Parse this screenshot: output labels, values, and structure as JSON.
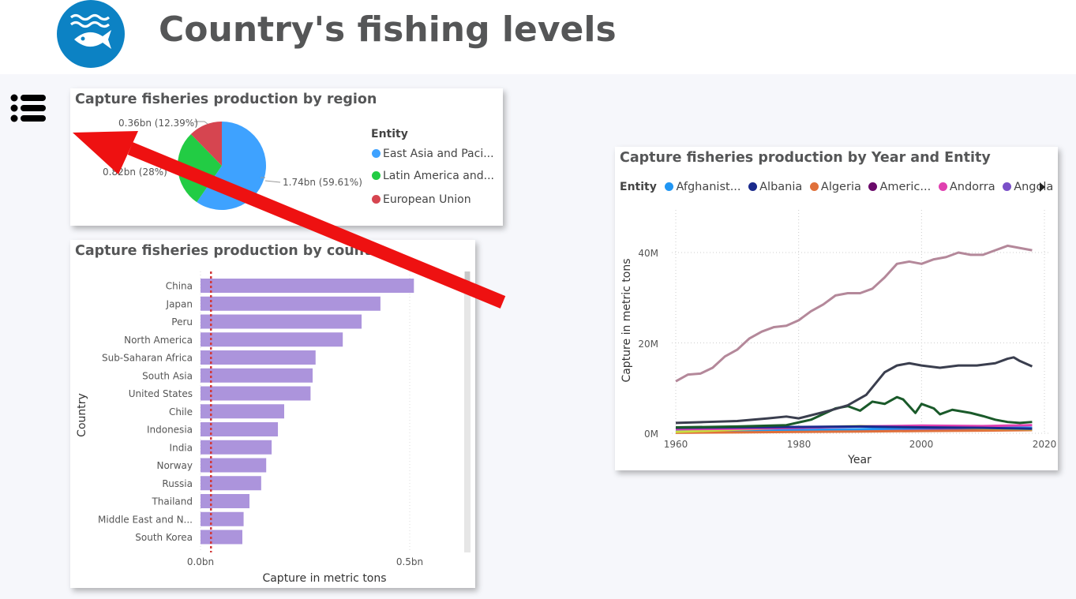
{
  "header": {
    "title": "Country's fishing levels",
    "logo_icon": "fish-waves-icon"
  },
  "menu": {
    "icon": "list-icon"
  },
  "pie_card": {
    "title": "Capture fisheries production by region",
    "legend_title": "Entity",
    "items": [
      {
        "label": "East Asia and Paci...",
        "color": "#3ea2ff"
      },
      {
        "label": "Latin America and...",
        "color": "#22cc44"
      },
      {
        "label": "European Union",
        "color": "#d64550"
      }
    ],
    "slice_labels": [
      "1.74bn (59.61%)",
      "0.82bn (28%)",
      "0.36bn (12.39%)"
    ]
  },
  "bar_card": {
    "title": "Capture fisheries production by country",
    "ylabel": "Country",
    "xlabel": "Capture in metric tons",
    "ticks": [
      "0.0bn",
      "0.5bn"
    ],
    "bar_color": "#ac94dc"
  },
  "line_card": {
    "title": "Capture fisheries production by Year and Entity",
    "legend_title": "Entity",
    "legend": [
      {
        "label": "Afghanist...",
        "color": "#2196f3"
      },
      {
        "label": "Albania",
        "color": "#1a2a8c"
      },
      {
        "label": "Algeria",
        "color": "#e0703a"
      },
      {
        "label": "Americ...",
        "color": "#6a0a6a"
      },
      {
        "label": "Andorra",
        "color": "#e040b0"
      },
      {
        "label": "Angola",
        "color": "#7a4fc8"
      }
    ],
    "ylabel": "Capture in metric tons",
    "xlabel": "Year",
    "yticks": [
      "0M",
      "20M",
      "40M"
    ],
    "xticks": [
      "1960",
      "1980",
      "2000",
      "2020"
    ]
  },
  "chart_data": [
    {
      "type": "pie",
      "title": "Capture fisheries production by region",
      "categories": [
        "East Asia and Paci...",
        "Latin America and...",
        "European Union"
      ],
      "values": [
        1.74,
        0.82,
        0.36
      ],
      "percent": [
        59.61,
        28,
        12.39
      ],
      "unit": "bn",
      "legend": "right"
    },
    {
      "type": "bar",
      "orientation": "horizontal",
      "title": "Capture fisheries production by country",
      "xlabel": "Capture in metric tons",
      "ylabel": "Country",
      "categories": [
        "China",
        "Japan",
        "Peru",
        "North America",
        "Sub-Saharan Africa",
        "South Asia",
        "United States",
        "Chile",
        "Indonesia",
        "India",
        "Norway",
        "Russia",
        "Thailand",
        "Middle East and N...",
        "South Korea"
      ],
      "values": [
        0.51,
        0.43,
        0.385,
        0.34,
        0.275,
        0.268,
        0.263,
        0.2,
        0.185,
        0.17,
        0.157,
        0.145,
        0.117,
        0.103,
        0.1
      ],
      "unit": "bn",
      "xlim": [
        0,
        0.6
      ],
      "reference_line": 0.025
    },
    {
      "type": "line",
      "title": "Capture fisheries production by Year and Entity",
      "xlabel": "Year",
      "ylabel": "Capture in metric tons",
      "xlim": [
        1960,
        2020
      ],
      "ylim": [
        0,
        45000000
      ],
      "grid": true,
      "legend": "top",
      "series": [
        {
          "color": "#b4889a",
          "x": [
            1960,
            1962,
            1964,
            1966,
            1968,
            1970,
            1972,
            1974,
            1976,
            1978,
            1980,
            1982,
            1984,
            1986,
            1988,
            1990,
            1992,
            1994,
            1996,
            1998,
            2000,
            2002,
            2004,
            2006,
            2008,
            2010,
            2012,
            2014,
            2016,
            2018
          ],
          "y": [
            11500000,
            13000000,
            13200000,
            14500000,
            17000000,
            18500000,
            21000000,
            22500000,
            23500000,
            23800000,
            25000000,
            27000000,
            28500000,
            30500000,
            31000000,
            31000000,
            32000000,
            34500000,
            37500000,
            38000000,
            37500000,
            38500000,
            39000000,
            40000000,
            39500000,
            39500000,
            40500000,
            41500000,
            41000000,
            40500000
          ]
        },
        {
          "color": "#3a3e4e",
          "x": [
            1960,
            1965,
            1970,
            1975,
            1978,
            1980,
            1985,
            1988,
            1991,
            1994,
            1996,
            1998,
            2000,
            2003,
            2006,
            2009,
            2012,
            2014,
            2015,
            2016,
            2018
          ],
          "y": [
            2300000,
            2500000,
            2700000,
            3300000,
            3700000,
            3300000,
            5000000,
            6200000,
            8500000,
            13500000,
            15000000,
            15500000,
            15000000,
            14500000,
            15000000,
            15000000,
            15500000,
            16500000,
            16800000,
            16000000,
            14800000
          ]
        },
        {
          "color": "#1a5a2a",
          "x": [
            1960,
            1970,
            1978,
            1982,
            1986,
            1988,
            1990,
            1992,
            1994,
            1996,
            1997,
            1999,
            2000,
            2002,
            2003,
            2005,
            2008,
            2010,
            2012,
            2014,
            2016,
            2018
          ],
          "y": [
            1300000,
            1500000,
            1800000,
            3000000,
            5500000,
            6000000,
            5000000,
            7000000,
            6500000,
            8000000,
            7500000,
            4500000,
            6500000,
            5500000,
            4200000,
            5200000,
            4500000,
            3800000,
            3000000,
            2500000,
            2300000,
            2500000
          ]
        },
        {
          "color": "#1a2a8c",
          "x": [
            1960,
            1970,
            1980,
            1990,
            2000,
            2010,
            2018
          ],
          "y": [
            1200000,
            1300000,
            1400000,
            1500000,
            1300000,
            1200000,
            1000000
          ]
        },
        {
          "color": "#e040b0",
          "x": [
            1960,
            1970,
            1980,
            1990,
            2000,
            2010,
            2018
          ],
          "y": [
            900000,
            1000000,
            1200000,
            1500000,
            1700000,
            1600000,
            1800000
          ]
        },
        {
          "color": "#c8e040",
          "x": [
            1960,
            1970,
            1980,
            1990,
            2000,
            2010,
            2018
          ],
          "y": [
            300000,
            800000,
            1300000,
            1600000,
            1400000,
            1100000,
            900000
          ]
        },
        {
          "color": "#e0703a",
          "x": [
            1960,
            1970,
            1980,
            1990,
            2000,
            2010,
            2018
          ],
          "y": [
            100000,
            200000,
            300000,
            400000,
            500000,
            600000,
            700000
          ]
        },
        {
          "color": "#2196f3",
          "x": [
            1960,
            1970,
            1980,
            1990,
            2000,
            2010,
            2018
          ],
          "y": [
            500000,
            600000,
            700000,
            900000,
            1200000,
            1500000,
            1200000
          ]
        },
        {
          "color": "#7a4fc8",
          "x": [
            1960,
            1970,
            1980,
            1990,
            2000,
            2010,
            2018
          ],
          "y": [
            400000,
            500000,
            700000,
            800000,
            900000,
            800000,
            700000
          ]
        }
      ]
    }
  ]
}
